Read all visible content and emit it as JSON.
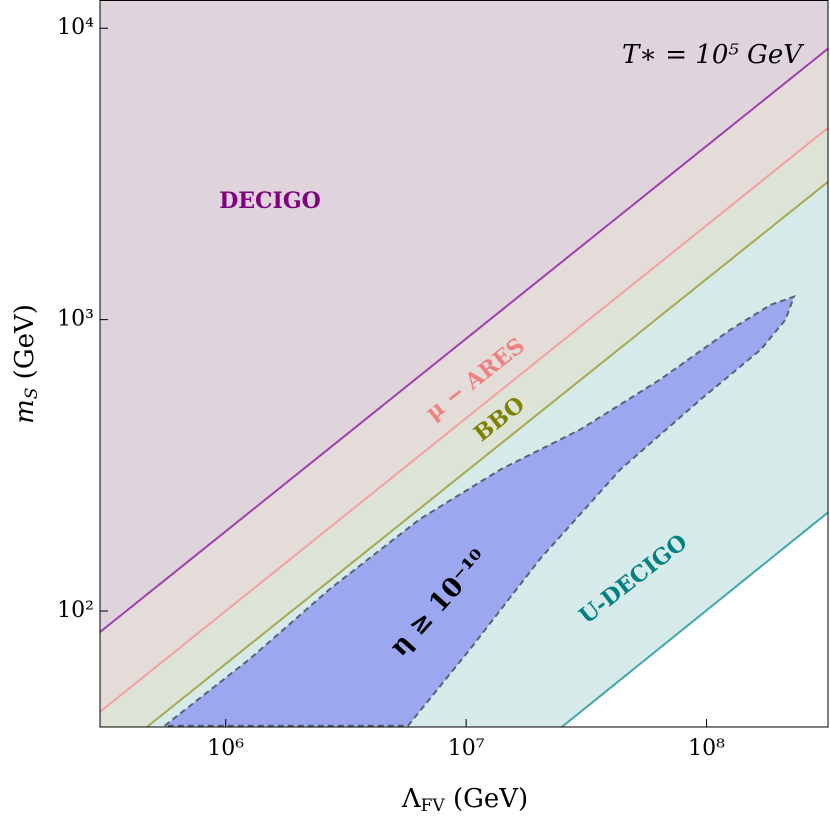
{
  "chart_data": {
    "type": "region",
    "x_label": {
      "main": "Λ",
      "sub": "FV",
      "rest": " (GeV)"
    },
    "y_label": {
      "main": "m",
      "sub": "S",
      "rest": " (GeV)"
    },
    "annotation": "T∗ = 10⁵ GeV",
    "log_x": true,
    "log_y": true,
    "xlim": [
      300000,
      320000000
    ],
    "ylim": [
      40,
      12500
    ],
    "xticks": [
      {
        "value": 1000000,
        "label": "10⁶"
      },
      {
        "value": 10000000,
        "label": "10⁷"
      },
      {
        "value": 100000000,
        "label": "10⁸"
      }
    ],
    "yticks": [
      {
        "value": 100,
        "label": "10²"
      },
      {
        "value": 1000,
        "label": "10³"
      },
      {
        "value": 10000,
        "label": "10⁴"
      }
    ],
    "series": [
      {
        "name": "U-DECIGO",
        "color": "#40a8a8",
        "fill": "#d6ebe9",
        "label_color": "#008080",
        "x": [
          25000000,
          320000000
        ],
        "y": [
          40,
          218
        ]
      },
      {
        "name": "BBO",
        "color": "#a8a850",
        "fill": "#dde3d6",
        "label_color": "#808000",
        "x": [
          470000,
          320000000
        ],
        "y": [
          40,
          2972
        ]
      },
      {
        "name": "μ − ARES",
        "color": "#f5a0a0",
        "fill": "#e3dcd8",
        "label_color": "#f08080",
        "x": [
          300000,
          320000000
        ],
        "y": [
          45.1,
          4550
        ]
      },
      {
        "name": "DECIGO",
        "color": "#a040b0",
        "fill": "#dfd3dc",
        "label_color": "#800080",
        "x": [
          300000,
          320000000
        ],
        "y": [
          84.7,
          8511
        ]
      }
    ],
    "region": {
      "name": "η ≥ 10⁻¹⁰",
      "color": "#9ba8ef",
      "edge": "#5a6078",
      "x": [
        557000,
        1260000,
        2710000,
        6430000,
        13900000,
        29900000,
        64300000,
        126000000,
        185000000,
        231000000,
        213000000,
        168000000,
        94400000,
        43800000,
        20300000,
        10400000,
        5730000
      ],
      "y": [
        40.4,
        68.5,
        119,
        207,
        306,
        420,
        624,
        925,
        1125,
        1199,
        1000,
        789,
        532,
        306,
        151,
        74.1,
        40.4
      ]
    }
  }
}
